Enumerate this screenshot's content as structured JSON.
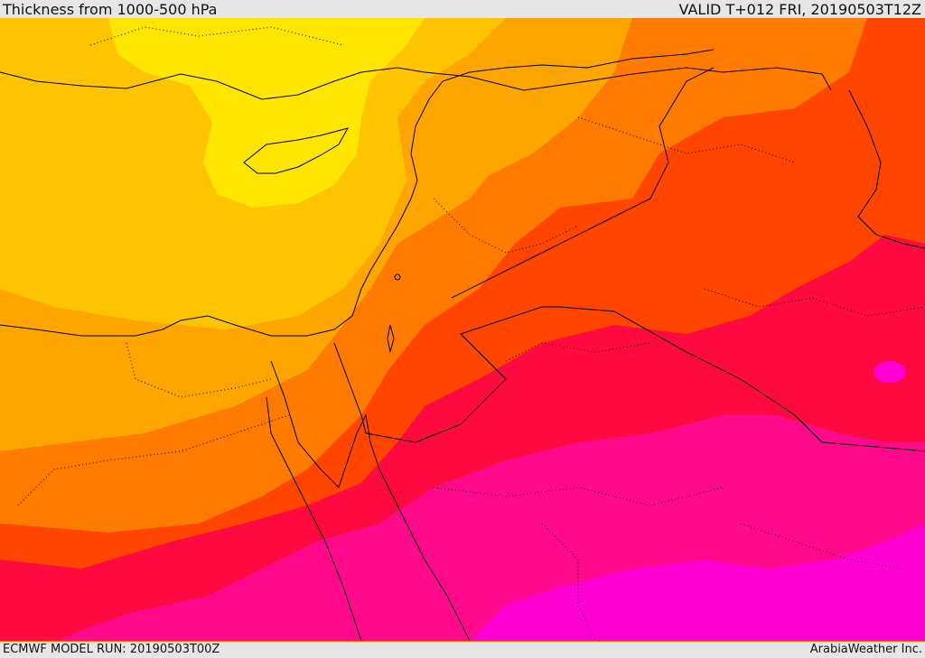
{
  "header": {
    "title": "Thickness from 1000-500 hPa",
    "valid": "VALID T+012 FRI, 20190503T12Z"
  },
  "footer": {
    "model_run": "ECMWF MODEL RUN: 20190503T00Z",
    "credit": "ArabiaWeather Inc."
  },
  "map": {
    "fill_colors": {
      "band_1": "#ffe600",
      "band_2": "#ffc400",
      "band_3": "#ffa500",
      "band_4": "#ff7b00",
      "band_5": "#ff4500",
      "band_6": "#ff0a40",
      "band_7": "#ff0a8c",
      "band_8": "#ff00d2"
    },
    "boundary_color": "#000000"
  }
}
